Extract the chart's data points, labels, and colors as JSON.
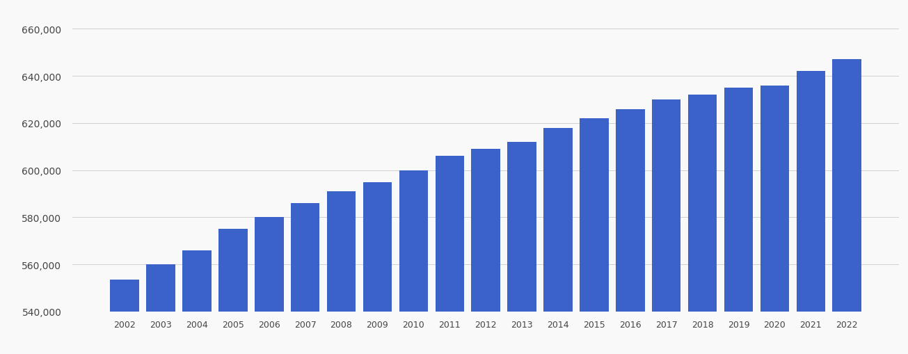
{
  "years": [
    2002,
    2003,
    2004,
    2005,
    2006,
    2007,
    2008,
    2009,
    2010,
    2011,
    2012,
    2013,
    2014,
    2015,
    2016,
    2017,
    2018,
    2019,
    2020,
    2021,
    2022
  ],
  "values": [
    553500,
    560000,
    566000,
    575000,
    580000,
    586000,
    591000,
    595000,
    600000,
    606000,
    609000,
    612000,
    618000,
    622000,
    626000,
    630000,
    632000,
    635000,
    636000,
    642000,
    647000
  ],
  "bar_color": "#3b62c9",
  "background_color": "#f9f9f9",
  "grid_color": "#d0d0d0",
  "tick_color": "#444444",
  "ylim_min": 540000,
  "ylim_max": 668000,
  "ytick_values": [
    540000,
    560000,
    580000,
    600000,
    620000,
    640000,
    660000
  ],
  "figure_width": 13.05,
  "figure_height": 5.1
}
